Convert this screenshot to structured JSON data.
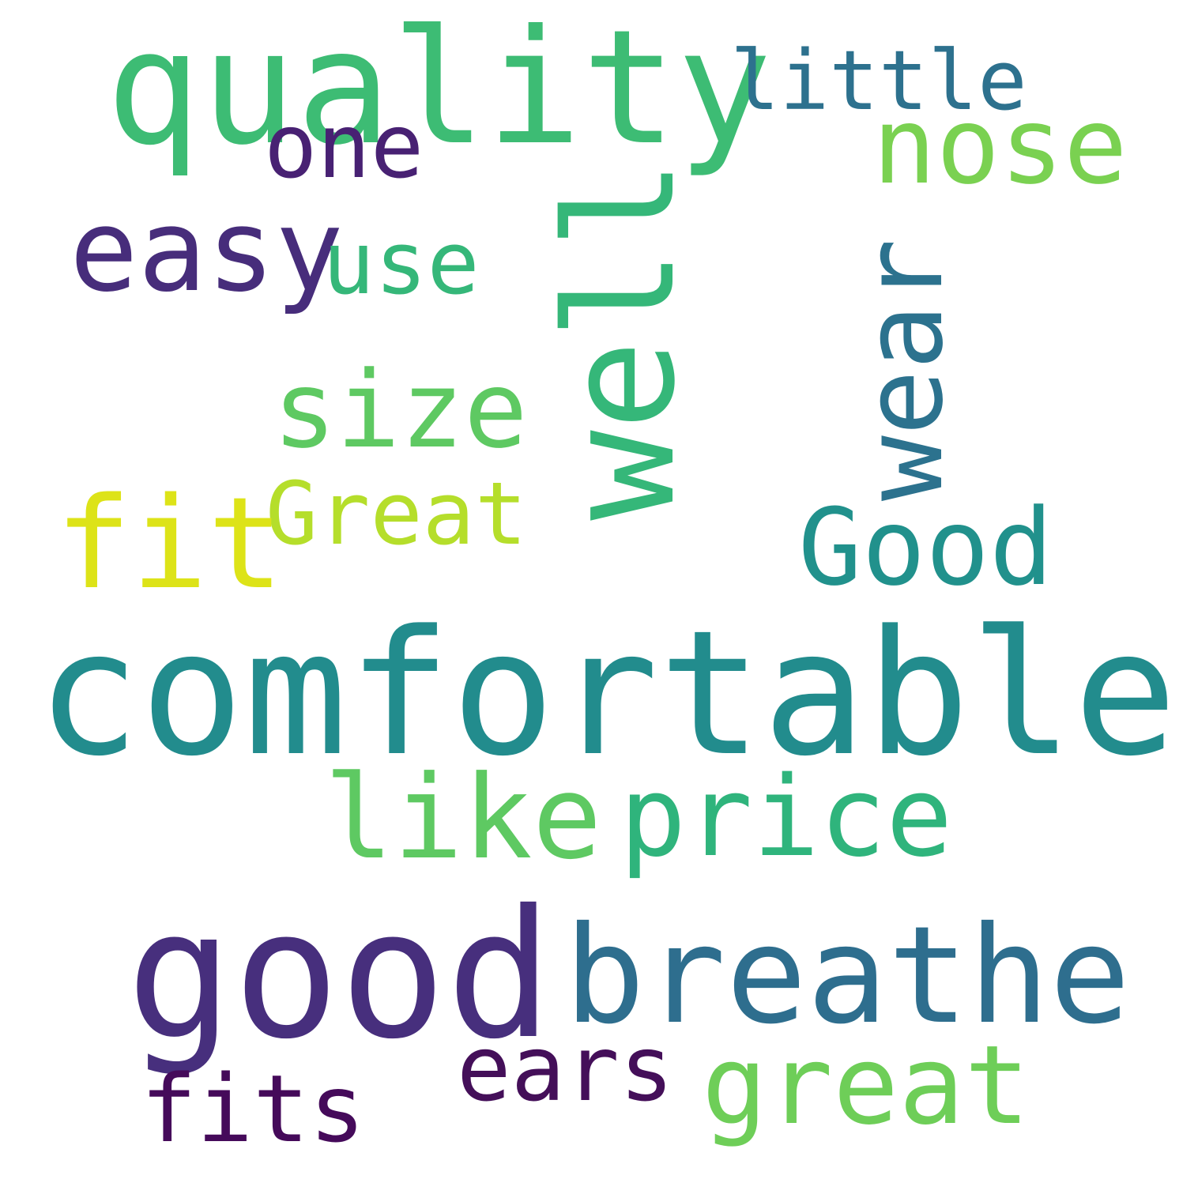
{
  "words": [
    {
      "id": "quality",
      "text": "quality",
      "color": "#3dbc74",
      "orientation": "horizontal"
    },
    {
      "id": "little",
      "text": "little",
      "color": "#2d718e",
      "orientation": "horizontal"
    },
    {
      "id": "one",
      "text": "one",
      "color": "#482173",
      "orientation": "horizontal"
    },
    {
      "id": "nose",
      "text": "nose",
      "color": "#7ad151",
      "orientation": "horizontal"
    },
    {
      "id": "easy",
      "text": "easy",
      "color": "#472d7b",
      "orientation": "horizontal"
    },
    {
      "id": "use",
      "text": "use",
      "color": "#35b779",
      "orientation": "horizontal"
    },
    {
      "id": "well",
      "text": "well",
      "color": "#35b779",
      "orientation": "vertical"
    },
    {
      "id": "wear",
      "text": "wear",
      "color": "#2c728e",
      "orientation": "vertical"
    },
    {
      "id": "size",
      "text": "size",
      "color": "#5ec962",
      "orientation": "horizontal"
    },
    {
      "id": "Great",
      "text": "Great",
      "color": "#b5de2b",
      "orientation": "horizontal"
    },
    {
      "id": "fit",
      "text": "fit",
      "color": "#dde318",
      "orientation": "horizontal"
    },
    {
      "id": "Good",
      "text": "Good",
      "color": "#21918c",
      "orientation": "horizontal"
    },
    {
      "id": "comfortable",
      "text": "comfortable",
      "color": "#228c8d",
      "orientation": "horizontal"
    },
    {
      "id": "like",
      "text": "like",
      "color": "#5ec962",
      "orientation": "horizontal"
    },
    {
      "id": "price",
      "text": "price",
      "color": "#2fb47c",
      "orientation": "horizontal"
    },
    {
      "id": "good",
      "text": "good",
      "color": "#472f7d",
      "orientation": "horizontal"
    },
    {
      "id": "breathe",
      "text": "breathe",
      "color": "#2e6e8e",
      "orientation": "horizontal"
    },
    {
      "id": "ears",
      "text": "ears",
      "color": "#440f59",
      "orientation": "horizontal"
    },
    {
      "id": "great",
      "text": "great",
      "color": "#6ece58",
      "orientation": "horizontal"
    },
    {
      "id": "fits",
      "text": "fits",
      "color": "#450a5a",
      "orientation": "horizontal"
    }
  ]
}
